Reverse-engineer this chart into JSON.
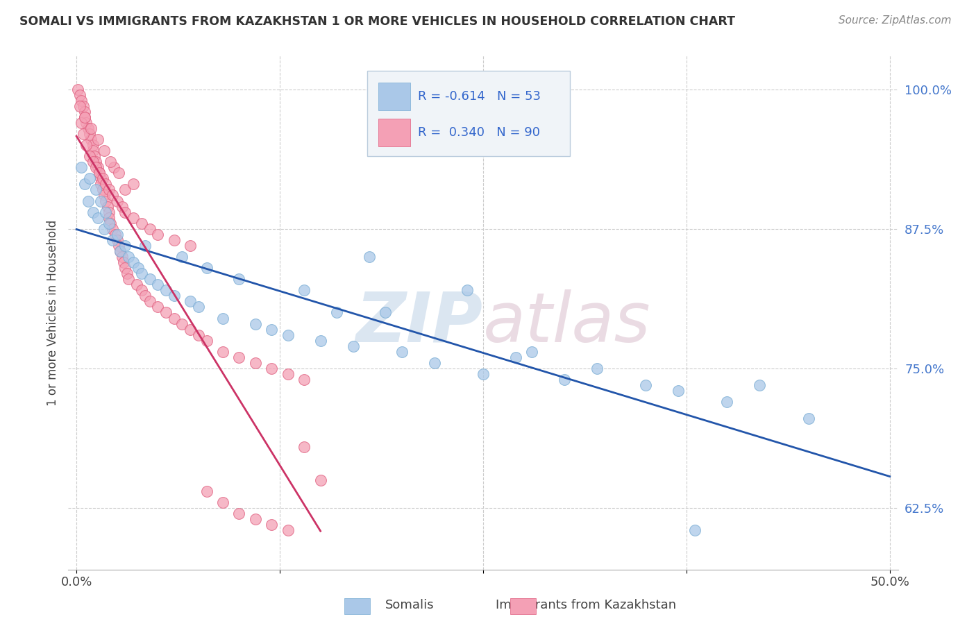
{
  "title": "SOMALI VS IMMIGRANTS FROM KAZAKHSTAN 1 OR MORE VEHICLES IN HOUSEHOLD CORRELATION CHART",
  "source": "Source: ZipAtlas.com",
  "ylabel": "1 or more Vehicles in Household",
  "xlim": [
    -0.5,
    50.5
  ],
  "ylim": [
    57.0,
    103.0
  ],
  "xticks": [
    0.0,
    12.5,
    25.0,
    37.5,
    50.0
  ],
  "xtick_labels": [
    "0.0%",
    "",
    "",
    "",
    "50.0%"
  ],
  "yticks": [
    62.5,
    75.0,
    87.5,
    100.0
  ],
  "ytick_labels": [
    "62.5%",
    "75.0%",
    "87.5%",
    "100.0%"
  ],
  "watermark": "ZIPatlas",
  "blue_color": "#aac8e8",
  "pink_color": "#f4a0b5",
  "blue_line_color": "#2255aa",
  "pink_line_color": "#cc3366",
  "blue_edge_color": "#7aadd4",
  "pink_edge_color": "#e06080",
  "somali_x": [
    0.3,
    0.5,
    0.7,
    0.8,
    1.0,
    1.2,
    1.3,
    1.5,
    1.7,
    1.8,
    2.0,
    2.2,
    2.5,
    2.7,
    3.0,
    3.2,
    3.5,
    3.8,
    4.0,
    4.2,
    4.5,
    5.0,
    5.5,
    6.0,
    6.5,
    7.0,
    7.5,
    8.0,
    9.0,
    10.0,
    11.0,
    12.0,
    13.0,
    14.0,
    15.0,
    16.0,
    17.0,
    18.0,
    19.0,
    20.0,
    22.0,
    24.0,
    25.0,
    27.0,
    28.0,
    30.0,
    32.0,
    35.0,
    37.0,
    38.0,
    40.0,
    42.0,
    45.0
  ],
  "somali_y": [
    93.0,
    91.5,
    90.0,
    92.0,
    89.0,
    91.0,
    88.5,
    90.0,
    87.5,
    89.0,
    88.0,
    86.5,
    87.0,
    85.5,
    86.0,
    85.0,
    84.5,
    84.0,
    83.5,
    86.0,
    83.0,
    82.5,
    82.0,
    81.5,
    85.0,
    81.0,
    80.5,
    84.0,
    79.5,
    83.0,
    79.0,
    78.5,
    78.0,
    82.0,
    77.5,
    80.0,
    77.0,
    85.0,
    80.0,
    76.5,
    75.5,
    82.0,
    74.5,
    76.0,
    76.5,
    74.0,
    75.0,
    73.5,
    73.0,
    60.5,
    72.0,
    73.5,
    70.5
  ],
  "kaz_x": [
    0.1,
    0.2,
    0.3,
    0.4,
    0.5,
    0.5,
    0.6,
    0.7,
    0.8,
    0.9,
    1.0,
    1.0,
    1.1,
    1.2,
    1.3,
    1.4,
    1.5,
    1.5,
    1.6,
    1.7,
    1.8,
    1.9,
    2.0,
    2.0,
    2.1,
    2.2,
    2.3,
    2.4,
    2.5,
    2.6,
    2.7,
    2.8,
    2.9,
    3.0,
    3.0,
    3.1,
    3.2,
    3.5,
    3.7,
    4.0,
    4.2,
    4.5,
    5.0,
    5.5,
    6.0,
    6.5,
    7.0,
    7.5,
    8.0,
    9.0,
    10.0,
    11.0,
    12.0,
    13.0,
    14.0,
    0.3,
    0.4,
    0.6,
    0.8,
    1.0,
    1.2,
    1.4,
    1.6,
    1.8,
    2.0,
    2.2,
    2.5,
    2.8,
    3.0,
    3.5,
    4.0,
    4.5,
    5.0,
    6.0,
    7.0,
    8.0,
    9.0,
    10.0,
    11.0,
    12.0,
    13.0,
    14.0,
    15.0,
    0.2,
    0.5,
    0.9,
    1.3,
    1.7,
    2.1,
    2.6
  ],
  "kaz_y": [
    100.0,
    99.5,
    99.0,
    98.5,
    98.0,
    97.5,
    97.0,
    96.5,
    96.0,
    95.5,
    95.0,
    94.5,
    94.0,
    93.5,
    93.0,
    92.5,
    92.0,
    91.5,
    91.0,
    90.5,
    90.0,
    89.5,
    89.0,
    88.5,
    88.0,
    87.5,
    93.0,
    87.0,
    86.5,
    86.0,
    85.5,
    85.0,
    84.5,
    84.0,
    91.0,
    83.5,
    83.0,
    91.5,
    82.5,
    82.0,
    81.5,
    81.0,
    80.5,
    80.0,
    79.5,
    79.0,
    78.5,
    78.0,
    77.5,
    76.5,
    76.0,
    75.5,
    75.0,
    74.5,
    74.0,
    97.0,
    96.0,
    95.0,
    94.0,
    93.5,
    93.0,
    92.5,
    92.0,
    91.5,
    91.0,
    90.5,
    90.0,
    89.5,
    89.0,
    88.5,
    88.0,
    87.5,
    87.0,
    86.5,
    86.0,
    64.0,
    63.0,
    62.0,
    61.5,
    61.0,
    60.5,
    68.0,
    65.0,
    98.5,
    97.5,
    96.5,
    95.5,
    94.5,
    93.5,
    92.5
  ]
}
